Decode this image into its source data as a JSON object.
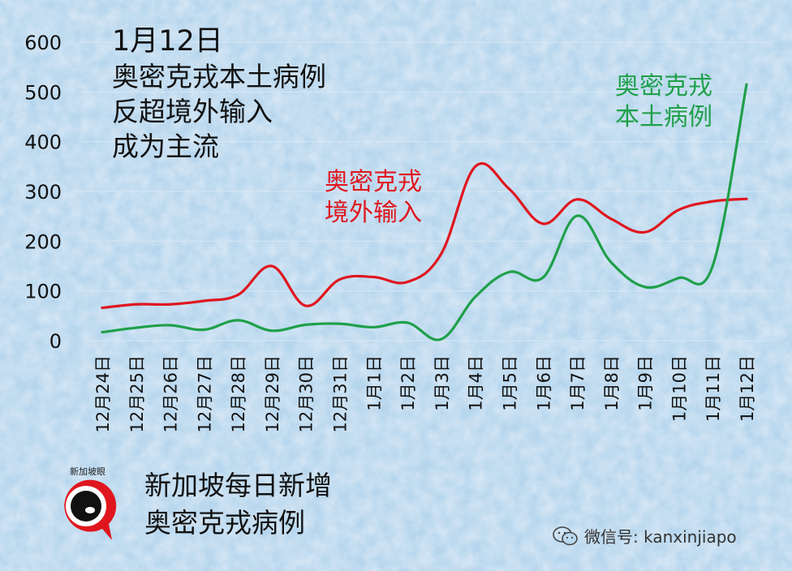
{
  "title_lines": [
    "1月12日",
    "奥密克戎本土病例",
    "反超境外输入",
    "成为主流"
  ],
  "bottom_title_lines": [
    "新加坡每日新增",
    "奥密克戎病例"
  ],
  "logo_text": "新加坡眼",
  "watermark": {
    "icon": "wechat-icon",
    "text": "微信号: kanxinjiapo"
  },
  "chart_data": {
    "type": "line",
    "categories": [
      "12月24日",
      "12月25日",
      "12月26日",
      "12月27日",
      "12月28日",
      "12月29日",
      "12月30日",
      "12月31日",
      "1月1日",
      "1月2日",
      "1月3日",
      "1月4日",
      "1月5日",
      "1月6日",
      "1月7日",
      "1月8日",
      "1月9日",
      "1月10日",
      "1月11日",
      "1月12日"
    ],
    "ylim": [
      0,
      600
    ],
    "yticks": [
      0,
      100,
      200,
      300,
      400,
      500,
      600
    ],
    "grid": true,
    "legend": "inline labels",
    "series": [
      {
        "name_lines": [
          "奥密克戎",
          "境外输入"
        ],
        "color": "#e0161e",
        "values": [
          66,
          73,
          73,
          80,
          92,
          150,
          70,
          123,
          128,
          118,
          175,
          350,
          305,
          235,
          284,
          245,
          218,
          263,
          280,
          285
        ]
      },
      {
        "name_lines": [
          "奥密克戎",
          "本土病例"
        ],
        "color": "#1fa04a",
        "values": [
          17,
          26,
          31,
          22,
          41,
          20,
          32,
          34,
          27,
          36,
          3,
          88,
          138,
          127,
          251,
          158,
          108,
          126,
          150,
          515
        ]
      }
    ]
  }
}
